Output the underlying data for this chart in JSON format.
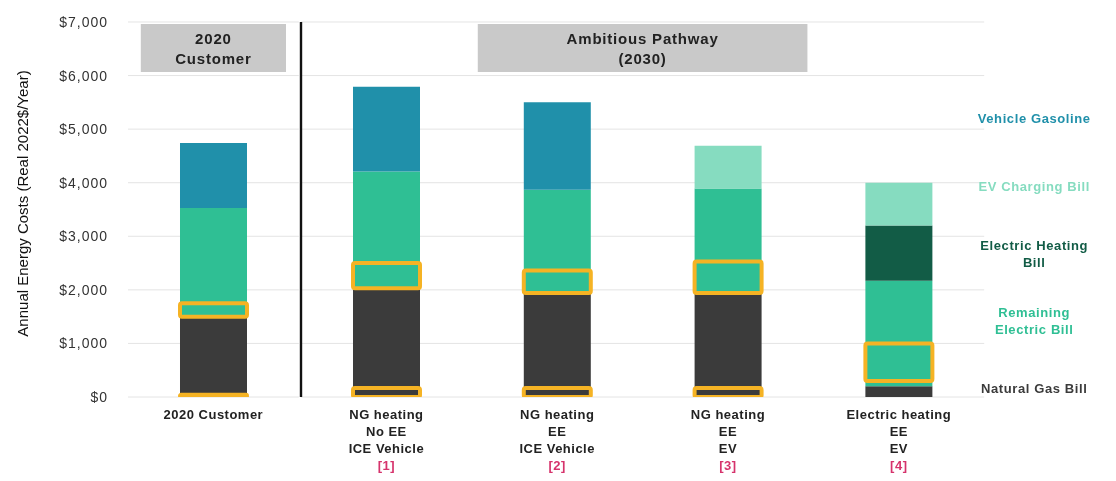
{
  "chart_data": [
    {
      "type": "bar",
      "title": "2020\nCustomer",
      "ylabel": "Annual Energy Costs (Real 2022$/Year)",
      "categories": [
        "2020 Customer"
      ],
      "series": [
        {
          "color": "#3b3b3b",
          "base": [
            0
          ],
          "values": [
            1480
          ]
        },
        {
          "color": "#2fbf94",
          "base": [
            1480
          ],
          "values": [
            2050
          ]
        },
        {
          "color": "#2090aa",
          "base": [
            3530
          ],
          "values": [
            1210
          ]
        },
        {
          "color": "#f5b324",
          "base": [
            0
          ],
          "values": [
            40
          ]
        },
        {
          "color": "#f5b324",
          "base": [
            1500
          ],
          "values": [
            250
          ]
        }
      ],
      "ylim": [
        0,
        7000
      ],
      "yticks": [
        {
          "value": 0,
          "label": "$0"
        },
        {
          "value": 1000,
          "label": "$1,000"
        },
        {
          "value": 2000,
          "label": "$2,000"
        },
        {
          "value": 3000,
          "label": "$3,000"
        },
        {
          "value": 4000,
          "label": "$4,000"
        },
        {
          "value": 5000,
          "label": "$5,000"
        },
        {
          "value": 6000,
          "label": "$6,000"
        },
        {
          "value": 7000,
          "label": "$7,000"
        }
      ],
      "grid": "y"
    },
    {
      "type": "bar",
      "title": "Ambitious Pathway\n(2030)",
      "categories": [
        "NG heating\nNo EE\nICE Vehicle\n[1]",
        "NG heating\nEE\nICE Vehicle\n[2]",
        "NG heating\nEE\nEV\n[3]",
        "Electric heating\nEE\nEV\n[4]"
      ],
      "series": [
        {
          "name": "Natural Gas Bill",
          "color": "#3b3b3b",
          "base": [
            0,
            0,
            0,
            0
          ],
          "values": [
            2030,
            1940,
            1940,
            200
          ]
        },
        {
          "name": "Remaining\nElectric Bill",
          "color": "#2fbf94",
          "base": [
            2030,
            1940,
            1940,
            200
          ],
          "values": [
            2180,
            1930,
            1950,
            1970
          ]
        },
        {
          "name": "Electric Heating\nBill",
          "color": "#125c46",
          "base": [
            null,
            null,
            null,
            2170
          ],
          "values": [
            null,
            null,
            null,
            1030
          ]
        },
        {
          "name": "EV Charging Bill",
          "color": "#86dcc0",
          "base": [
            null,
            null,
            3890,
            3200
          ],
          "values": [
            null,
            null,
            800,
            800
          ]
        },
        {
          "name": "Vehicle Gasoline",
          "color": "#2090aa",
          "base": [
            4210,
            3870,
            null,
            null
          ],
          "values": [
            1580,
            1630,
            null,
            null
          ]
        },
        {
          "color": "#f5b324",
          "base": [
            0,
            0,
            0,
            null
          ],
          "values": [
            170,
            170,
            170,
            null
          ]
        },
        {
          "color": "#f5b324",
          "base": [
            2030,
            1940,
            1940,
            300
          ],
          "values": [
            470,
            420,
            590,
            700
          ]
        }
      ],
      "ylim": [
        0,
        7000
      ],
      "yticks": [
        0,
        1000,
        2000,
        3000,
        4000,
        5000,
        6000,
        7000
      ],
      "tick_labels": "x",
      "grid": "y",
      "legend": "right"
    }
  ]
}
